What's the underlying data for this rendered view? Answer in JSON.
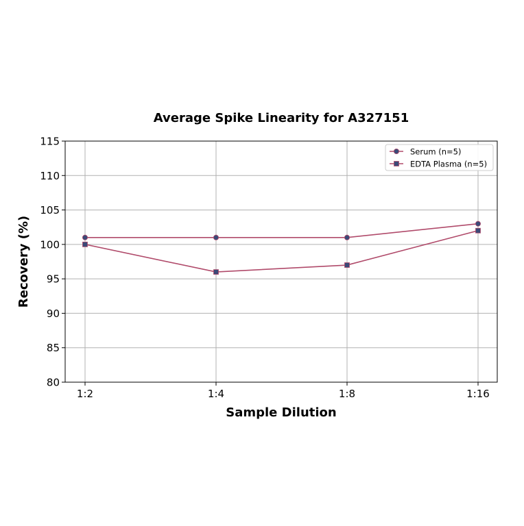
{
  "chart_data": {
    "type": "line",
    "title": "Average Spike Linearity for A327151",
    "xlabel": "Sample Dilution",
    "ylabel": "Recovery (%)",
    "categories": [
      "1:2",
      "1:4",
      "1:8",
      "1:16"
    ],
    "ylim": [
      80,
      115
    ],
    "yticks": [
      80,
      85,
      90,
      95,
      100,
      105,
      110,
      115
    ],
    "grid": true,
    "legend_position": "top-right",
    "series": [
      {
        "name": "Serum (n=5)",
        "marker": "circle",
        "values": [
          101,
          101,
          101,
          103
        ]
      },
      {
        "name": "EDTA Plasma (n=5)",
        "marker": "square",
        "values": [
          100,
          96,
          97,
          102
        ]
      }
    ],
    "colors": {
      "line": "#b04a6a",
      "marker_fill": "#3b4a78",
      "grid": "#b0b0b0",
      "axis": "#000000"
    }
  }
}
